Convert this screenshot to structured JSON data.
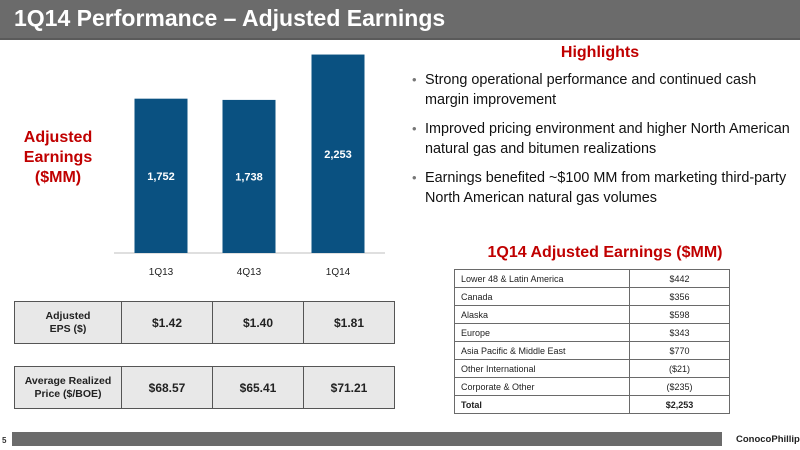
{
  "slide": {
    "title": "1Q14 Performance – Adjusted Earnings",
    "page_number": "5",
    "logo_text": "ConocoPhillips",
    "accent_color": "#c00000",
    "bar_color": "#0a5181"
  },
  "chart_data": {
    "type": "bar",
    "categories": [
      "1Q13",
      "4Q13",
      "1Q14"
    ],
    "values": [
      1752,
      1738,
      2253
    ],
    "value_labels": [
      "1,752",
      "1,738",
      "2,253"
    ],
    "ylabel": "Adjusted Earnings ($MM)",
    "ylim": [
      0,
      2350
    ],
    "grid": false,
    "legend": "none"
  },
  "eps": {
    "label_line1": "Adjusted",
    "label_line2": "EPS ($)",
    "values": [
      "$1.42",
      "$1.40",
      "$1.81"
    ]
  },
  "price": {
    "label_line1": "Average Realized",
    "label_line2": "Price ($/BOE)",
    "values": [
      "$68.57",
      "$65.41",
      "$71.21"
    ]
  },
  "highlights": {
    "title": "Highlights",
    "items": [
      "Strong operational performance and continued cash margin improvement",
      "Improved pricing environment and higher North American natural gas and bitumen realizations",
      "Earnings benefited ~$100 MM from marketing third-party North American natural gas volumes"
    ]
  },
  "earnings_table": {
    "title": "1Q14 Adjusted Earnings ($MM)",
    "rows": [
      {
        "region": "Lower 48 & Latin America",
        "amount": "$442"
      },
      {
        "region": "Canada",
        "amount": "$356"
      },
      {
        "region": "Alaska",
        "amount": "$598"
      },
      {
        "region": "Europe",
        "amount": "$343"
      },
      {
        "region": "Asia Pacific & Middle East",
        "amount": "$770"
      },
      {
        "region": "Other International",
        "amount": "($21)"
      },
      {
        "region": "Corporate & Other",
        "amount": "($235)"
      }
    ],
    "total": {
      "region": "Total",
      "amount": "$2,253"
    }
  }
}
